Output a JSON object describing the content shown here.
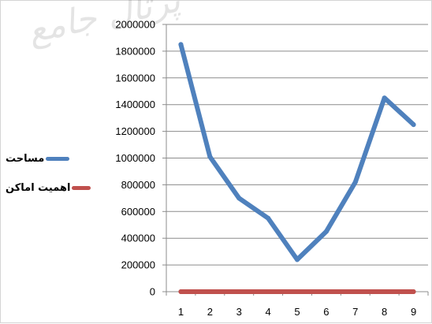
{
  "watermark": "پرتال جامع",
  "chart_data": {
    "type": "line",
    "title": "",
    "xlabel": "",
    "ylabel": "",
    "categories": [
      "1",
      "2",
      "3",
      "4",
      "5",
      "6",
      "7",
      "8",
      "9"
    ],
    "ylim": [
      0,
      2000000
    ],
    "y_ticks": [
      0,
      200000,
      400000,
      600000,
      800000,
      1000000,
      1200000,
      1400000,
      1600000,
      1800000,
      2000000
    ],
    "y_tick_labels": [
      "0",
      "200000",
      "400000",
      "600000",
      "800000",
      "1000000",
      "1200000",
      "1400000",
      "1600000",
      "1800000",
      "2000000"
    ],
    "grid": "horizontal",
    "legend_position": "left",
    "series": [
      {
        "name": "مساحت",
        "color": "#4f81bd",
        "values": [
          1850000,
          1010000,
          700000,
          550000,
          240000,
          450000,
          820000,
          1450000,
          1250000
        ]
      },
      {
        "name": "اهمیت اماکن",
        "color": "#c0504d",
        "values": [
          0,
          0,
          0,
          0,
          0,
          0,
          0,
          0,
          0
        ]
      }
    ]
  }
}
